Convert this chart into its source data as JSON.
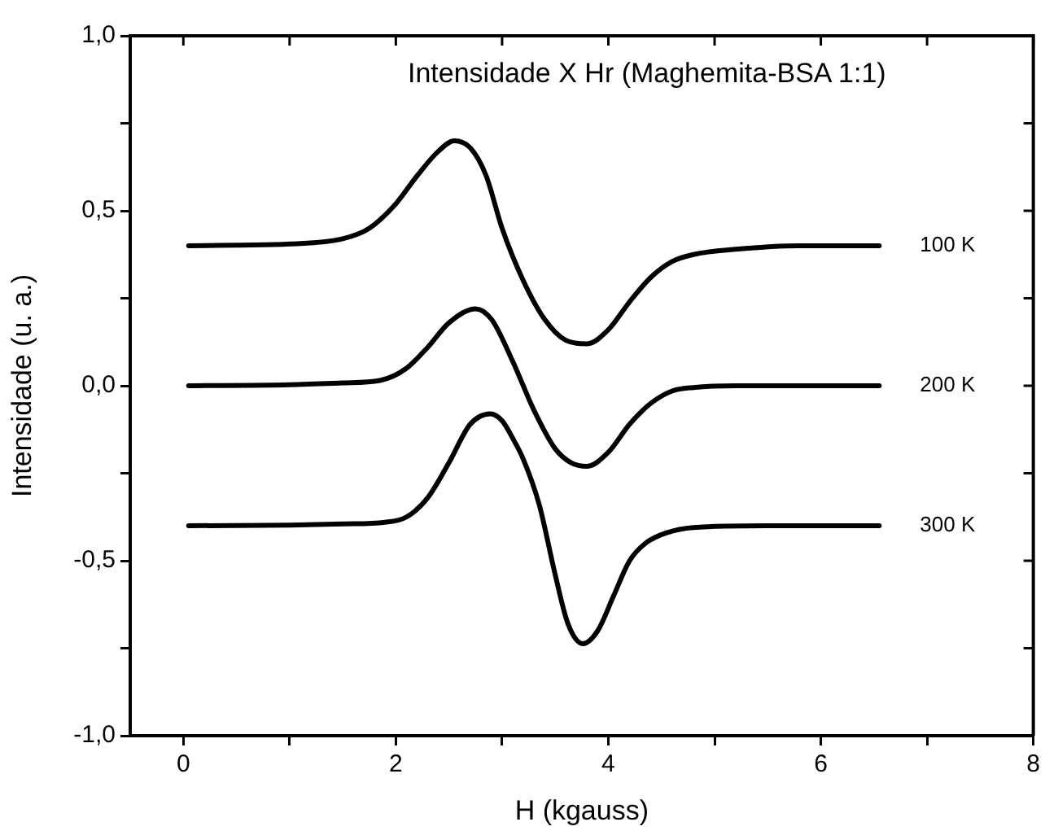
{
  "chart_data": {
    "type": "line",
    "title": "Intensidade X Hr (Maghemita-BSA 1:1)",
    "xlabel": "H (kgauss)",
    "ylabel": "Intensidade (u. a.)",
    "xlim": [
      -0.5,
      8
    ],
    "xticks": [
      0,
      {
        "value": 1,
        "label": null
      },
      2,
      {
        "value": 3,
        "label": null
      },
      4,
      {
        "value": 5,
        "label": null
      },
      6,
      {
        "value": 7,
        "label": null
      },
      8
    ],
    "ylim": [
      -1,
      1
    ],
    "yticks": [
      {
        "value": -1,
        "label": "-1,0"
      },
      {
        "value": -0.75,
        "label": null
      },
      {
        "value": -0.5,
        "label": "-0,5"
      },
      {
        "value": -0.25,
        "label": null
      },
      {
        "value": 0,
        "label": "0,0"
      },
      {
        "value": 0.25,
        "label": null
      },
      {
        "value": 0.5,
        "label": "0,5"
      },
      {
        "value": 0.75,
        "label": null
      },
      {
        "value": 1,
        "label": "1,0"
      }
    ],
    "grid": false,
    "legend": "right",
    "marker": "none",
    "line_style": "solid",
    "series": [
      {
        "name": "100 K",
        "color": "#000000",
        "x": [
          0.05,
          0.5,
          1.0,
          1.5,
          1.75,
          2.0,
          2.2,
          2.4,
          2.55,
          2.7,
          2.85,
          3.0,
          3.2,
          3.4,
          3.6,
          3.8,
          4.0,
          4.2,
          4.4,
          4.6,
          4.8,
          5.2,
          5.8,
          6.55
        ],
        "values": [
          0.4,
          0.402,
          0.405,
          0.42,
          0.45,
          0.52,
          0.6,
          0.67,
          0.7,
          0.68,
          0.6,
          0.45,
          0.3,
          0.19,
          0.13,
          0.12,
          0.16,
          0.24,
          0.31,
          0.355,
          0.375,
          0.39,
          0.4,
          0.4
        ]
      },
      {
        "name": "200 K",
        "color": "#000000",
        "x": [
          0.05,
          1.0,
          1.5,
          1.85,
          2.1,
          2.3,
          2.5,
          2.75,
          2.9,
          3.1,
          3.3,
          3.5,
          3.65,
          3.8,
          4.0,
          4.2,
          4.4,
          4.6,
          4.8,
          5.2,
          6.55
        ],
        "values": [
          0,
          0.003,
          0.008,
          0.015,
          0.05,
          0.11,
          0.18,
          0.22,
          0.19,
          0.07,
          -0.07,
          -0.18,
          -0.22,
          -0.23,
          -0.19,
          -0.11,
          -0.05,
          -0.015,
          -0.005,
          0,
          0
        ]
      },
      {
        "name": "300 K",
        "color": "#000000",
        "x": [
          0.05,
          1.0,
          1.5,
          1.9,
          2.1,
          2.3,
          2.5,
          2.7,
          2.89,
          3.0,
          3.1,
          3.2,
          3.35,
          3.5,
          3.62,
          3.76,
          3.9,
          4.05,
          4.2,
          4.35,
          4.55,
          4.8,
          5.5,
          6.55
        ],
        "values": [
          -0.4,
          -0.398,
          -0.395,
          -0.39,
          -0.375,
          -0.32,
          -0.22,
          -0.11,
          -0.08,
          -0.1,
          -0.15,
          -0.21,
          -0.34,
          -0.54,
          -0.68,
          -0.737,
          -0.7,
          -0.6,
          -0.5,
          -0.45,
          -0.42,
          -0.405,
          -0.4,
          -0.4
        ]
      }
    ]
  }
}
